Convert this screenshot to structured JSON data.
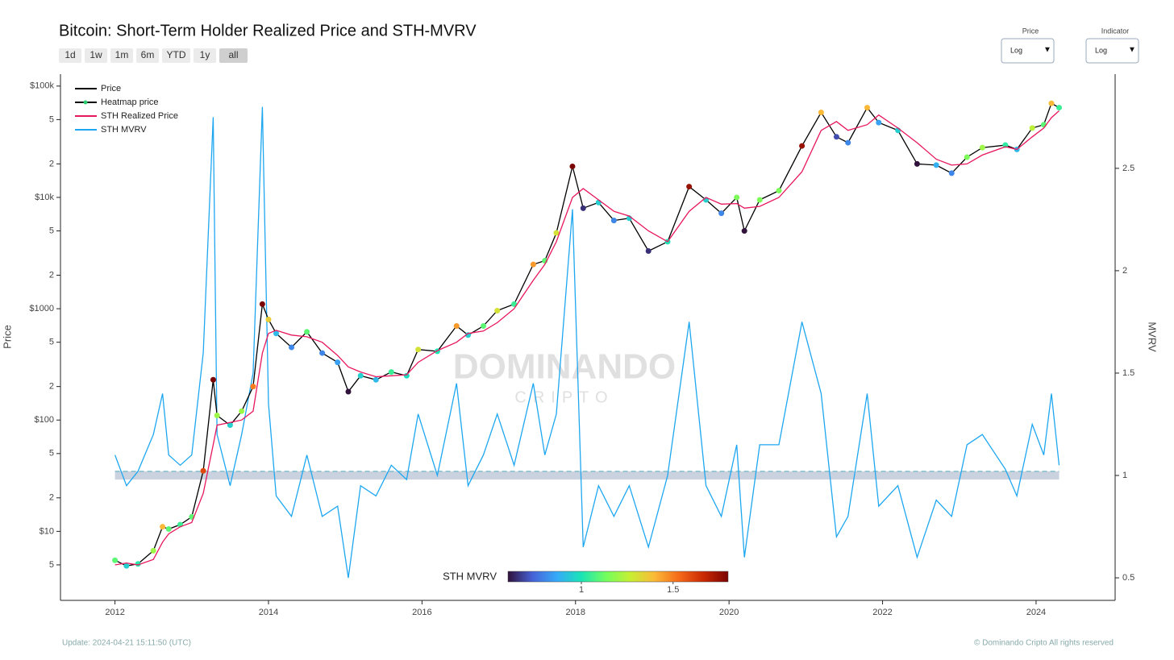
{
  "chart_data": {
    "type": "line",
    "title": "Bitcoin: Short-Term Holder Realized Price and STH-MVRV",
    "y_label": "Price",
    "y2_label": "MVRV",
    "ylog": true,
    "xlim": [
      2011.29,
      2025.03
    ],
    "xticks": [
      2012,
      2014,
      2016,
      2018,
      2020,
      2022,
      2024
    ],
    "ylim": [
      2.4,
      128000
    ],
    "yticks": [
      5,
      {
        "value": 10,
        "label": "$10"
      },
      {
        "value": 20,
        "label": "2"
      },
      {
        "value": 50,
        "label": "5"
      },
      {
        "value": 100,
        "label": "$100"
      },
      {
        "value": 200,
        "label": "2"
      },
      {
        "value": 500,
        "label": "5"
      },
      {
        "value": 1000,
        "label": "$1000"
      },
      {
        "value": 2000,
        "label": "2"
      },
      {
        "value": 5000,
        "label": "5"
      },
      {
        "value": 10000,
        "label": "$10k"
      },
      {
        "value": 20000,
        "label": "2"
      },
      {
        "value": 50000,
        "label": "5"
      },
      {
        "value": 100000,
        "label": "$100k"
      }
    ],
    "y2lim": [
      0.39,
      2.96
    ],
    "y2ticks": [
      0.5,
      1,
      1.5,
      2,
      2.5
    ],
    "x": [
      2012.0,
      2012.15,
      2012.3,
      2012.5,
      2012.62,
      2012.7,
      2012.85,
      2013.0,
      2013.15,
      2013.28,
      2013.33,
      2013.5,
      2013.65,
      2013.8,
      2013.92,
      2014.0,
      2014.1,
      2014.3,
      2014.5,
      2014.7,
      2014.9,
      2015.04,
      2015.2,
      2015.4,
      2015.6,
      2015.8,
      2015.95,
      2016.2,
      2016.45,
      2016.6,
      2016.8,
      2016.98,
      2017.2,
      2017.45,
      2017.6,
      2017.75,
      2017.96,
      2018.1,
      2018.3,
      2018.5,
      2018.7,
      2018.95,
      2019.2,
      2019.48,
      2019.7,
      2019.9,
      2020.1,
      2020.2,
      2020.4,
      2020.65,
      2020.95,
      2021.2,
      2021.4,
      2021.55,
      2021.8,
      2021.95,
      2022.2,
      2022.45,
      2022.7,
      2022.9,
      2023.1,
      2023.3,
      2023.6,
      2023.75,
      2023.95,
      2024.1,
      2024.2,
      2024.3
    ],
    "series": [
      {
        "name": "Price",
        "color": "#000000",
        "values": [
          5.5,
          4.9,
          5.1,
          6.7,
          11,
          10.5,
          11.5,
          13.5,
          35,
          230,
          110,
          90,
          120,
          200,
          1100,
          800,
          600,
          450,
          620,
          400,
          330,
          180,
          250,
          230,
          270,
          250,
          430,
          415,
          700,
          580,
          700,
          960,
          1100,
          2500,
          2700,
          4800,
          19000,
          8000,
          9000,
          6200,
          6500,
          3300,
          4000,
          12500,
          9500,
          7200,
          10000,
          5000,
          9500,
          11500,
          29000,
          58000,
          35000,
          31000,
          64000,
          47000,
          40000,
          20000,
          19500,
          16500,
          23000,
          28000,
          29500,
          27000,
          42000,
          45000,
          70000,
          64000
        ]
      },
      {
        "name": "Heatmap price",
        "color": "#2ecc71"
      },
      {
        "name": "STH Realized Price",
        "color": "#e8175d",
        "values": [
          5.0,
          5.2,
          5.0,
          5.6,
          8,
          9.5,
          11,
          12,
          22,
          60,
          90,
          95,
          100,
          120,
          400,
          600,
          640,
          580,
          560,
          500,
          380,
          300,
          270,
          245,
          250,
          255,
          330,
          420,
          500,
          600,
          630,
          750,
          1000,
          1800,
          2500,
          4000,
          10000,
          12000,
          9500,
          7500,
          6800,
          5000,
          4000,
          7500,
          10000,
          8700,
          8800,
          8000,
          8300,
          10000,
          17000,
          40000,
          48000,
          40000,
          45000,
          55000,
          42000,
          31000,
          22000,
          19500,
          20000,
          24000,
          28500,
          27000,
          35000,
          42000,
          52000,
          60000
        ]
      },
      {
        "name": "STH MVRV",
        "color": "#1ea7f0",
        "axis": "y2",
        "values": [
          1.1,
          0.95,
          1.02,
          1.2,
          1.4,
          1.1,
          1.05,
          1.1,
          1.6,
          2.75,
          1.2,
          0.95,
          1.2,
          1.5,
          2.8,
          1.35,
          0.9,
          0.8,
          1.1,
          0.8,
          0.85,
          0.5,
          0.95,
          0.9,
          1.05,
          0.98,
          1.3,
          1.0,
          1.45,
          0.95,
          1.1,
          1.3,
          1.05,
          1.45,
          1.1,
          1.3,
          2.3,
          0.65,
          0.95,
          0.8,
          0.95,
          0.65,
          1.0,
          1.75,
          0.95,
          0.8,
          1.15,
          0.6,
          1.15,
          1.15,
          1.75,
          1.4,
          0.7,
          0.8,
          1.4,
          0.85,
          0.95,
          0.6,
          0.88,
          0.8,
          1.15,
          1.2,
          1.03,
          0.9,
          1.25,
          1.1,
          1.4,
          1.05
        ]
      }
    ],
    "reference_band": [
      0.98,
      1.02
    ],
    "colorbar": {
      "title": "STH MVRV",
      "range": [
        0.6,
        1.8
      ],
      "ticks": [
        1,
        1.5
      ],
      "colors": [
        "#30123b",
        "#4662d7",
        "#36aaf9",
        "#1ae4b6",
        "#72fe5e",
        "#c7ef34",
        "#fbb938",
        "#f56918",
        "#c92903",
        "#7a0403"
      ]
    },
    "watermark": [
      "DOMINANDO",
      "CRIPTO"
    ]
  },
  "controls": {
    "range_buttons": [
      "1d",
      "1w",
      "1m",
      "6m",
      "YTD",
      "1y",
      "all"
    ],
    "dropdowns": [
      {
        "label": "Price",
        "value": "Log"
      },
      {
        "label": "Indicator",
        "value": "Log"
      }
    ]
  },
  "footer": {
    "update": "Update: 2024-04-21 15:11:50 (UTC)",
    "copyright": "© Dominando Cripto All rights reserved"
  }
}
